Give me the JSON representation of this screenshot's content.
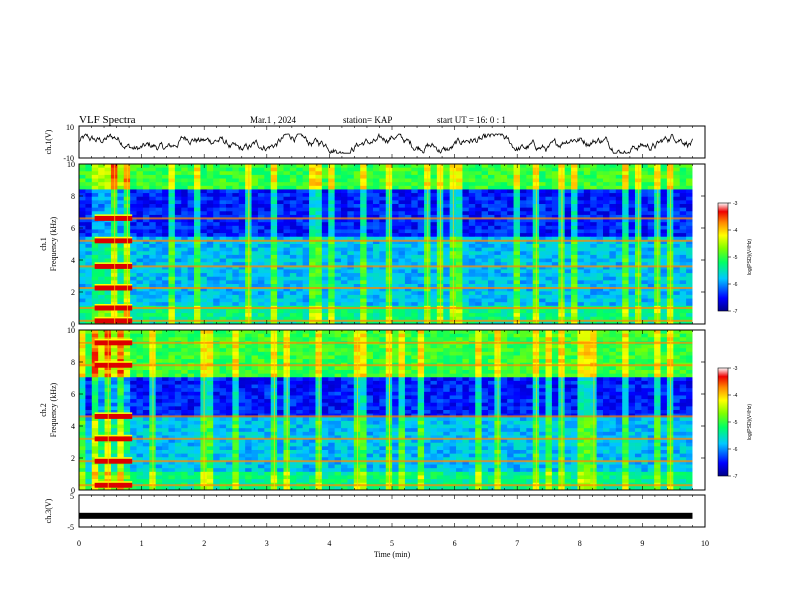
{
  "header": {
    "title": "VLF Spectra",
    "date": "Mar.1 , 2024",
    "station": "station= KAP",
    "start_ut": "start UT = 16: 0 : 1"
  },
  "chart_data": [
    {
      "type": "line",
      "name": "waveform-ch1",
      "ylabel": "ch.1(V)",
      "ylim": [
        -10,
        10
      ],
      "ytick_labels": [
        "10",
        "-10"
      ],
      "xlim": [
        0,
        10
      ],
      "trace_amplitude_range_V": [
        -7,
        5
      ]
    },
    {
      "type": "heatmap",
      "name": "spectrogram-ch1",
      "ylabel": "ch.1 Frequency (kHz)",
      "ylim": [
        0,
        10
      ],
      "yticks": [
        0,
        2,
        4,
        6,
        8,
        10
      ],
      "xlim": [
        0,
        10
      ],
      "data_end_min": 9.8,
      "colorbar": {
        "label": "log(PSD)(V²/Hz)",
        "range": [
          -7,
          -3
        ],
        "ticks": [
          "-3",
          "-4",
          "-5",
          "-6",
          "-7"
        ]
      },
      "features": {
        "low_intensity_band_khz": [
          5.5,
          8.5
        ],
        "lines_khz": [
          0.2,
          1.0,
          2.25,
          3.6,
          5.2,
          6.6
        ],
        "early_strong_interval_min": [
          0.25,
          0.85
        ]
      }
    },
    {
      "type": "heatmap",
      "name": "spectrogram-ch2",
      "ylabel": "ch.2 Frequency (kHz)",
      "ylim": [
        0,
        10
      ],
      "yticks": [
        0,
        2,
        4,
        6,
        8,
        10
      ],
      "xlim": [
        0,
        10
      ],
      "data_end_min": 9.8,
      "colorbar": {
        "label": "log(PSD)(V²/Hz)",
        "range": [
          -7,
          -3
        ],
        "ticks": [
          "-3",
          "-4",
          "-5",
          "-6",
          "-7"
        ]
      },
      "features": {
        "low_intensity_band_khz": [
          4.5,
          7.0
        ],
        "lines_khz": [
          0.3,
          1.8,
          3.2,
          4.6,
          7.8,
          9.2
        ],
        "early_strong_interval_min": [
          0.25,
          0.85
        ]
      }
    },
    {
      "type": "line",
      "name": "waveform-ch3",
      "ylabel": "ch.3(V)",
      "ylim": [
        -5,
        5
      ],
      "ytick_labels": [
        "5",
        "-5"
      ],
      "xlim": [
        0,
        10
      ],
      "trace_level_V": -1.5,
      "xticks": [
        0,
        1,
        2,
        3,
        4,
        5,
        6,
        7,
        8,
        9,
        10
      ],
      "xlabel": "Time (min)"
    }
  ]
}
